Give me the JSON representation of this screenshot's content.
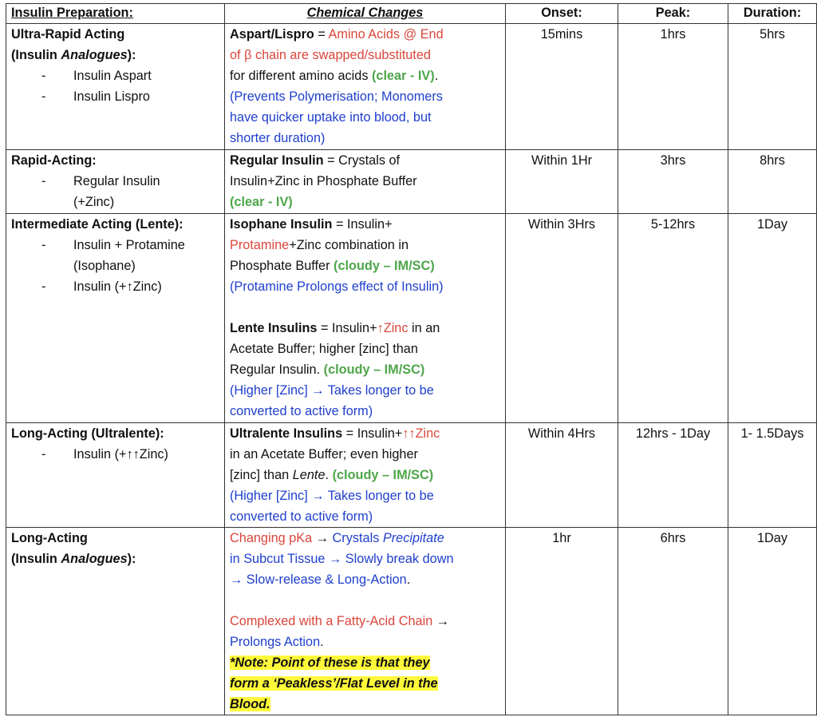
{
  "headers": [
    "Insulin Preparation:",
    "Chemical Changes",
    "Onset:",
    "Peak:",
    "Duration:"
  ],
  "colors": {
    "red": "#d9463b",
    "green": "#4ea64a",
    "blue": "#1f3fcc",
    "highlight": "#fff93a"
  },
  "rows": [
    {
      "prep_lines": [
        [
          {
            "t": "Ultra-Rapid Acting",
            "b": 1
          }
        ],
        [
          {
            "t": "(Insulin ",
            "b": 1
          },
          {
            "t": "Analogues",
            "b": 1,
            "i": 1
          },
          {
            "t": "):",
            "b": 1
          }
        ]
      ],
      "prep_items": [
        [
          "Insulin Aspart"
        ],
        [
          "Insulin Lispro"
        ]
      ],
      "chem": [
        [
          {
            "t": "Aspart/Lispro",
            "b": 1
          },
          {
            "t": " = "
          },
          {
            "t": "Amino Acids @ End",
            "c": "r"
          }
        ],
        [
          {
            "t": "of β chain are swapped/substituted",
            "c": "r"
          }
        ],
        [
          {
            "t": "for different amino acids "
          },
          {
            "t": "(clear - IV)",
            "c": "g",
            "b": 1
          },
          {
            "t": "."
          }
        ],
        [
          {
            "t": "(Prevents Polymerisation; Monomers",
            "c": "bl"
          }
        ],
        [
          {
            "t": "have quicker uptake into blood, but",
            "c": "bl"
          }
        ],
        [
          {
            "t": "shorter duration)",
            "c": "bl"
          }
        ]
      ],
      "onset": "15mins",
      "peak": "1hrs",
      "duration": "5hrs"
    },
    {
      "prep_lines": [
        [
          {
            "t": "Rapid-Acting:",
            "b": 1
          }
        ]
      ],
      "prep_items": [
        [
          "Regular Insulin",
          "(+Zinc)"
        ]
      ],
      "chem": [
        [
          {
            "t": "Regular Insulin",
            "b": 1
          },
          {
            "t": " = Crystals of"
          }
        ],
        [
          {
            "t": "Insulin+Zinc in Phosphate Buffer"
          }
        ],
        [
          {
            "t": "(clear - IV)",
            "c": "g",
            "b": 1
          }
        ]
      ],
      "onset": "Within 1Hr",
      "peak": "3hrs",
      "duration": "8hrs"
    },
    {
      "prep_lines": [
        [
          {
            "t": "Intermediate Acting (Lente):",
            "b": 1
          }
        ]
      ],
      "prep_items": [
        [
          "Insulin + Protamine",
          "(Isophane)"
        ],
        [
          "Insulin (+↑Zinc)"
        ]
      ],
      "chem": [
        [
          {
            "t": "Isophane Insulin",
            "b": 1
          },
          {
            "t": " = Insulin+"
          }
        ],
        [
          {
            "t": "Protamine",
            "c": "r"
          },
          {
            "t": "+Zinc combination in"
          }
        ],
        [
          {
            "t": "Phosphate Buffer "
          },
          {
            "t": "(cloudy – IM/SC)",
            "c": "g",
            "b": 1
          }
        ],
        [
          {
            "t": "(Protamine Prolongs effect of Insulin)",
            "c": "bl"
          }
        ],
        [],
        [
          {
            "t": "Lente Insulins",
            "b": 1
          },
          {
            "t": " = Insulin+"
          },
          {
            "t": "↑Zinc",
            "c": "r"
          },
          {
            "t": " in an"
          }
        ],
        [
          {
            "t": "Acetate Buffer; higher [zinc] than"
          }
        ],
        [
          {
            "t": "Regular Insulin. "
          },
          {
            "t": "(cloudy – IM/SC)",
            "c": "g",
            "b": 1
          }
        ],
        [
          {
            "t": "(Higher [Zinc] → Takes longer to be",
            "c": "bl"
          }
        ],
        [
          {
            "t": "converted to active form)",
            "c": "bl"
          }
        ]
      ],
      "onset": "Within 3Hrs",
      "peak": "5-12hrs",
      "duration": "1Day"
    },
    {
      "prep_lines": [
        [
          {
            "t": "Long-Acting (Ultralente):",
            "b": 1
          }
        ]
      ],
      "prep_items": [
        [
          "Insulin (+↑↑Zinc)"
        ]
      ],
      "chem": [
        [
          {
            "t": "Ultralente Insulins",
            "b": 1
          },
          {
            "t": " = Insulin+"
          },
          {
            "t": "↑↑Zinc",
            "c": "r"
          }
        ],
        [
          {
            "t": "in an Acetate Buffer; even higher"
          }
        ],
        [
          {
            "t": "[zinc] than "
          },
          {
            "t": "Lente",
            "i": 1
          },
          {
            "t": ". "
          },
          {
            "t": "(cloudy – IM/SC)",
            "c": "g",
            "b": 1
          }
        ],
        [
          {
            "t": "(Higher [Zinc] → Takes longer to be",
            "c": "bl"
          }
        ],
        [
          {
            "t": "converted to active form)",
            "c": "bl"
          }
        ]
      ],
      "onset": "Within 4Hrs",
      "peak": "12hrs - 1Day",
      "duration": "1- 1.5Days"
    },
    {
      "prep_lines": [
        [
          {
            "t": "Long-Acting",
            "b": 1
          }
        ],
        [
          {
            "t": "(Insulin ",
            "b": 1
          },
          {
            "t": "Analogues",
            "b": 1,
            "i": 1
          },
          {
            "t": "):",
            "b": 1
          }
        ]
      ],
      "prep_items": [],
      "chem": [
        [
          {
            "t": "Changing pKa",
            "c": "r"
          },
          {
            "t": " → "
          },
          {
            "t": "Crystals ",
            "c": "bl"
          },
          {
            "t": "Precipitate",
            "c": "bl",
            "i": 1
          }
        ],
        [
          {
            "t": "in Subcut Tissue → Slowly break down",
            "c": "bl"
          }
        ],
        [
          {
            "t": "→ Slow-release & Long-Action",
            "c": "bl"
          },
          {
            "t": "."
          }
        ],
        [],
        [
          {
            "t": "Complexed with a Fatty-Acid Chain",
            "c": "r"
          },
          {
            "t": " →"
          }
        ],
        [
          {
            "t": "Prolongs Action",
            "c": "bl"
          },
          {
            "t": "."
          }
        ],
        [
          {
            "t": "*Note: Point of these is that they",
            "b": 1,
            "i": 1,
            "hl": 1
          }
        ],
        [
          {
            "t": "form a ‘Peakless’/Flat Level in the",
            "b": 1,
            "i": 1,
            "hl": 1
          }
        ],
        [
          {
            "t": "Blood.",
            "b": 1,
            "i": 1,
            "hl": 1
          }
        ]
      ],
      "onset": "1hr",
      "peak": "6hrs",
      "duration": "1Day"
    }
  ]
}
